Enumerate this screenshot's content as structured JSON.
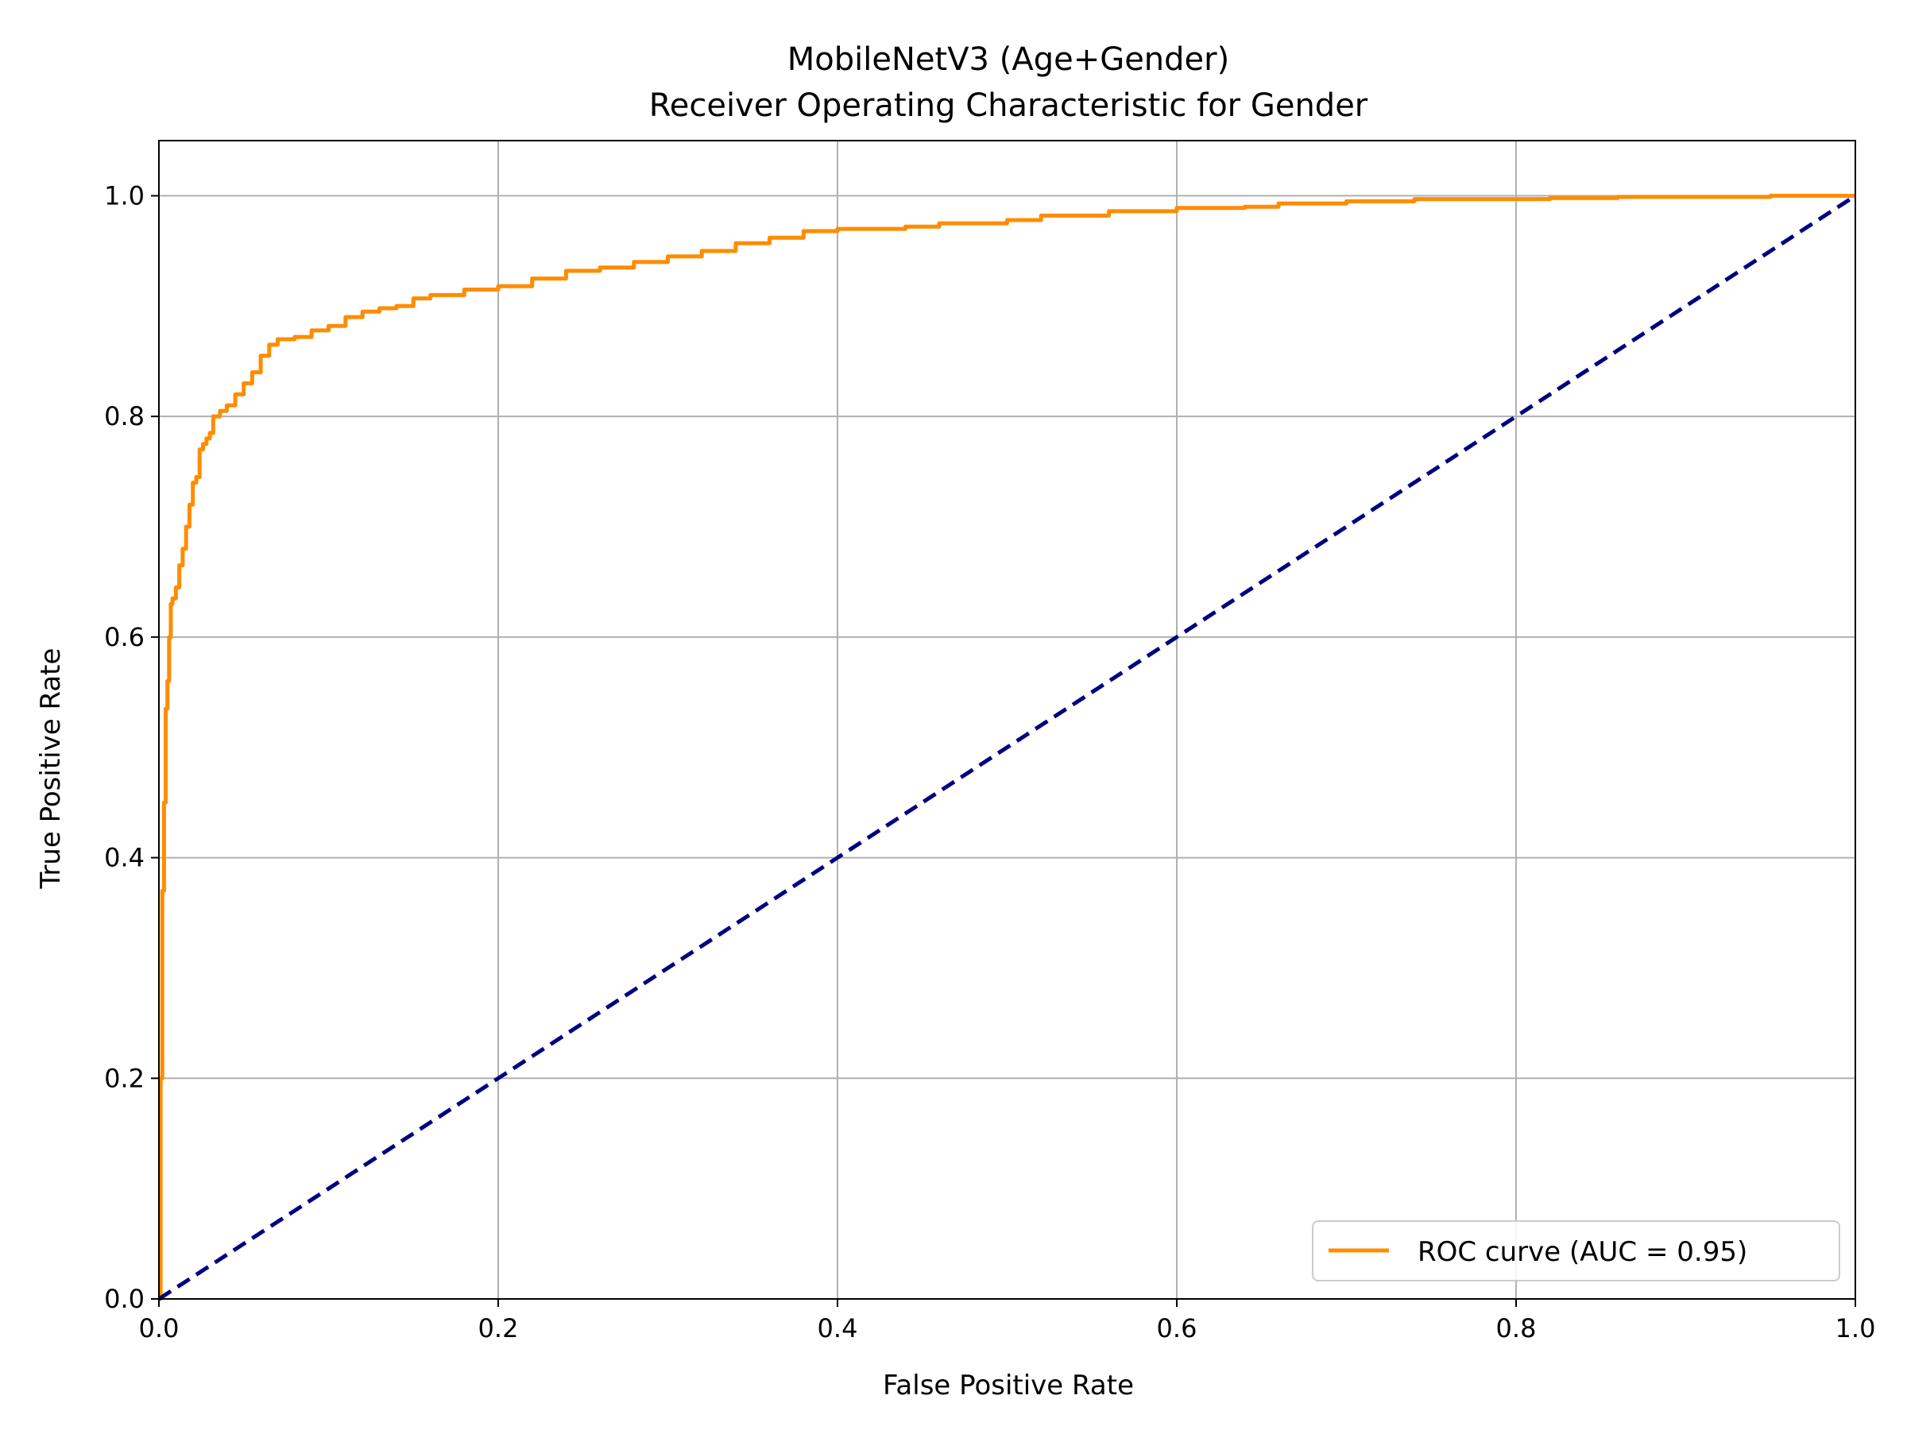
{
  "chart_data": {
    "type": "line",
    "title_line1": "MobileNetV3 (Age+Gender)",
    "title_line2": "Receiver Operating Characteristic for Gender",
    "xlabel": "False Positive Rate",
    "ylabel": "True Positive Rate",
    "xlim": [
      0.0,
      1.0
    ],
    "ylim": [
      0.0,
      1.05
    ],
    "x_ticks": [
      {
        "value": 0.0,
        "label": "0.0"
      },
      {
        "value": 0.2,
        "label": "0.2"
      },
      {
        "value": 0.4,
        "label": "0.4"
      },
      {
        "value": 0.6,
        "label": "0.6"
      },
      {
        "value": 0.8,
        "label": "0.8"
      },
      {
        "value": 1.0,
        "label": "1.0"
      }
    ],
    "y_ticks": [
      {
        "value": 0.0,
        "label": "0.0"
      },
      {
        "value": 0.2,
        "label": "0.2"
      },
      {
        "value": 0.4,
        "label": "0.4"
      },
      {
        "value": 0.6,
        "label": "0.6"
      },
      {
        "value": 0.8,
        "label": "0.8"
      },
      {
        "value": 1.0,
        "label": "1.0"
      }
    ],
    "grid": true,
    "legend_position": "bottom-right",
    "series": [
      {
        "name": "ROC curve (AUC = 0.95)",
        "color": "#ff8c00",
        "style": "solid",
        "x": [
          0.0,
          0.001,
          0.002,
          0.003,
          0.004,
          0.005,
          0.006,
          0.007,
          0.008,
          0.01,
          0.012,
          0.014,
          0.016,
          0.018,
          0.02,
          0.022,
          0.024,
          0.026,
          0.028,
          0.03,
          0.032,
          0.034,
          0.036,
          0.04,
          0.045,
          0.05,
          0.055,
          0.06,
          0.065,
          0.07,
          0.075,
          0.08,
          0.09,
          0.1,
          0.11,
          0.12,
          0.13,
          0.14,
          0.15,
          0.16,
          0.18,
          0.2,
          0.22,
          0.24,
          0.26,
          0.28,
          0.3,
          0.32,
          0.34,
          0.36,
          0.38,
          0.4,
          0.44,
          0.46,
          0.5,
          0.52,
          0.56,
          0.6,
          0.64,
          0.66,
          0.7,
          0.74,
          0.78,
          0.82,
          0.86,
          0.9,
          0.95,
          1.0
        ],
        "y": [
          0.0,
          0.2,
          0.37,
          0.45,
          0.535,
          0.56,
          0.6,
          0.63,
          0.635,
          0.645,
          0.665,
          0.68,
          0.7,
          0.72,
          0.74,
          0.745,
          0.77,
          0.775,
          0.78,
          0.785,
          0.8,
          0.8,
          0.805,
          0.81,
          0.82,
          0.83,
          0.84,
          0.855,
          0.865,
          0.87,
          0.87,
          0.872,
          0.878,
          0.882,
          0.89,
          0.895,
          0.898,
          0.9,
          0.907,
          0.91,
          0.915,
          0.918,
          0.925,
          0.932,
          0.935,
          0.94,
          0.945,
          0.95,
          0.957,
          0.962,
          0.968,
          0.97,
          0.972,
          0.975,
          0.978,
          0.982,
          0.986,
          0.989,
          0.99,
          0.993,
          0.995,
          0.997,
          0.997,
          0.998,
          0.999,
          0.999,
          1.0,
          1.0
        ]
      },
      {
        "name": "",
        "color": "#000080",
        "style": "dashed",
        "x": [
          0.0,
          1.0
        ],
        "y": [
          0.0,
          1.0
        ]
      }
    ],
    "legend_entries": [
      {
        "label": "ROC curve (AUC = 0.95)",
        "color": "#ff8c00"
      }
    ],
    "colors": {
      "grid": "#b0b0b0",
      "axes": "#000000",
      "legend_border": "#cccccc"
    }
  }
}
